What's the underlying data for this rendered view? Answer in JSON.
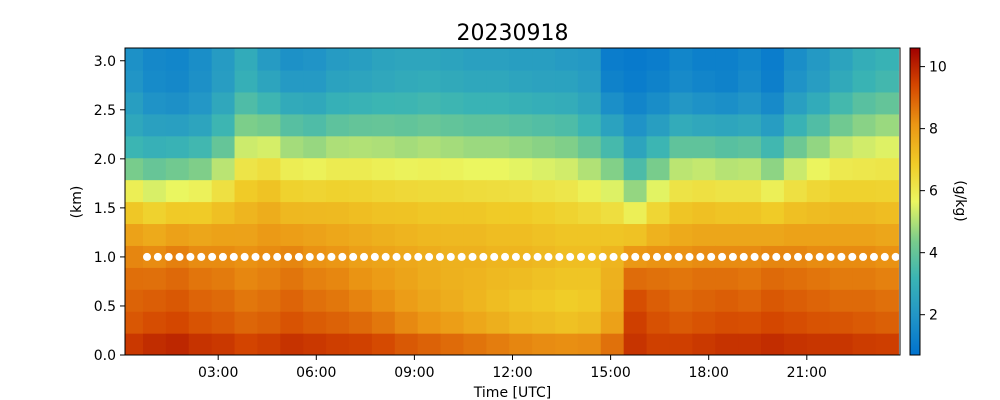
{
  "chart_data": {
    "type": "heatmap",
    "title": "20230918",
    "xlabel": "Time [UTC]",
    "ylabel": "(km)",
    "colorbar_label": "(g/kg)",
    "xlim_hours": [
      0.15,
      23.85
    ],
    "ylim_km": [
      0.0,
      3.13
    ],
    "x_ticks": [
      {
        "hour": 3,
        "label": "03:00"
      },
      {
        "hour": 6,
        "label": "06:00"
      },
      {
        "hour": 9,
        "label": "09:00"
      },
      {
        "hour": 12,
        "label": "12:00"
      },
      {
        "hour": 15,
        "label": "15:00"
      },
      {
        "hour": 18,
        "label": "18:00"
      },
      {
        "hour": 21,
        "label": "21:00"
      }
    ],
    "y_ticks": [
      {
        "km": 0.0,
        "label": "0.0"
      },
      {
        "km": 0.5,
        "label": "0.5"
      },
      {
        "km": 1.0,
        "label": "1.0"
      },
      {
        "km": 1.5,
        "label": "1.5"
      },
      {
        "km": 2.0,
        "label": "2.0"
      },
      {
        "km": 2.5,
        "label": "2.5"
      },
      {
        "km": 3.0,
        "label": "3.0"
      }
    ],
    "colorbar": {
      "vmin": 0.7,
      "vmax": 10.6,
      "colormap": "jet-like",
      "ticks": [
        {
          "value": 2,
          "label": "2"
        },
        {
          "value": 4,
          "label": "4"
        },
        {
          "value": 6,
          "label": "6"
        },
        {
          "value": 8,
          "label": "8"
        },
        {
          "value": 10,
          "label": "10"
        }
      ]
    },
    "marker_line": {
      "height_km": 1.0,
      "style": "white-dots"
    },
    "time_hours": [
      0.35,
      1.05,
      1.75,
      2.45,
      3.15,
      3.85,
      4.55,
      5.25,
      5.95,
      6.65,
      7.35,
      8.05,
      8.75,
      9.45,
      10.15,
      10.85,
      11.55,
      12.25,
      12.95,
      13.65,
      14.35,
      15.05,
      15.75,
      16.45,
      17.15,
      17.85,
      18.55,
      19.25,
      19.95,
      20.65,
      21.35,
      22.05,
      22.75,
      23.45
    ],
    "profile_heights_km": [
      0.0,
      0.25,
      0.5,
      0.75,
      1.0,
      1.25,
      1.5,
      1.75,
      2.0,
      2.25,
      2.5,
      2.75,
      3.0,
      3.13
    ],
    "profiles_g_per_kg": [
      [
        10.0,
        9.2,
        9.0,
        8.8,
        8.4,
        7.8,
        6.8,
        5.5,
        3.6,
        2.8,
        2.4,
        2.0,
        1.8,
        1.8
      ],
      [
        10.2,
        9.4,
        9.1,
        8.8,
        8.3,
        7.6,
        6.5,
        5.0,
        3.4,
        2.6,
        2.0,
        1.6,
        1.5,
        1.5
      ],
      [
        10.3,
        9.5,
        9.2,
        8.9,
        8.5,
        7.8,
        6.7,
        5.2,
        3.6,
        2.6,
        1.9,
        1.5,
        1.4,
        1.4
      ],
      [
        10.1,
        9.3,
        9.0,
        8.7,
        8.3,
        7.7,
        6.7,
        5.4,
        3.8,
        2.8,
        2.1,
        1.8,
        1.7,
        1.7
      ],
      [
        10.0,
        9.2,
        8.9,
        8.6,
        8.3,
        7.8,
        7.0,
        6.0,
        4.5,
        3.5,
        2.8,
        2.3,
        2.2,
        2.2
      ],
      [
        9.8,
        9.0,
        8.7,
        8.4,
        8.2,
        7.8,
        7.3,
        6.7,
        5.8,
        4.8,
        3.8,
        3.0,
        2.8,
        2.8
      ],
      [
        9.9,
        9.1,
        8.8,
        8.5,
        8.3,
        8.0,
        7.5,
        6.9,
        6.0,
        4.8,
        3.5,
        2.6,
        2.2,
        2.2
      ],
      [
        10.1,
        9.3,
        9.0,
        8.7,
        8.4,
        7.9,
        7.2,
        6.5,
        5.5,
        4.2,
        3.0,
        2.2,
        1.8,
        1.8
      ],
      [
        10.0,
        9.2,
        8.8,
        8.5,
        8.2,
        7.8,
        7.2,
        6.4,
        5.4,
        4.0,
        2.9,
        2.2,
        1.9,
        1.9
      ],
      [
        9.9,
        9.1,
        8.7,
        8.4,
        8.1,
        7.7,
        7.2,
        6.5,
        5.6,
        4.3,
        3.2,
        2.5,
        2.2,
        2.2
      ],
      [
        9.9,
        9.0,
        8.5,
        8.2,
        7.9,
        7.6,
        7.1,
        6.5,
        5.6,
        4.4,
        3.3,
        2.6,
        2.3,
        2.3
      ],
      [
        9.8,
        8.8,
        8.3,
        8.0,
        7.8,
        7.5,
        7.0,
        6.4,
        5.5,
        4.4,
        3.4,
        2.7,
        2.5,
        2.5
      ],
      [
        9.6,
        8.5,
        8.0,
        7.8,
        7.7,
        7.4,
        7.0,
        6.3,
        5.4,
        4.3,
        3.4,
        2.8,
        2.6,
        2.6
      ],
      [
        9.5,
        8.3,
        7.8,
        7.6,
        7.6,
        7.3,
        6.9,
        6.3,
        5.5,
        4.4,
        3.5,
        2.9,
        2.6,
        2.6
      ],
      [
        9.4,
        8.1,
        7.6,
        7.5,
        7.5,
        7.3,
        6.9,
        6.3,
        5.4,
        4.3,
        3.4,
        2.8,
        2.5,
        2.5
      ],
      [
        9.3,
        7.9,
        7.4,
        7.4,
        7.5,
        7.3,
        6.9,
        6.2,
        5.3,
        4.2,
        3.3,
        2.7,
        2.4,
        2.4
      ],
      [
        9.2,
        7.7,
        7.2,
        7.3,
        7.4,
        7.2,
        6.8,
        6.2,
        5.3,
        4.2,
        3.3,
        2.7,
        2.4,
        2.4
      ],
      [
        9.1,
        7.5,
        7.0,
        7.2,
        7.4,
        7.2,
        6.8,
        6.1,
        5.2,
        4.1,
        3.2,
        2.6,
        2.3,
        2.3
      ],
      [
        9.0,
        7.4,
        6.9,
        7.1,
        7.3,
        7.1,
        6.7,
        6.0,
        5.1,
        4.0,
        3.1,
        2.5,
        2.3,
        2.3
      ],
      [
        9.0,
        7.3,
        6.8,
        7.0,
        7.2,
        7.0,
        6.6,
        5.9,
        5.0,
        3.9,
        3.0,
        2.5,
        2.2,
        2.2
      ],
      [
        9.0,
        7.4,
        6.9,
        7.0,
        7.2,
        7.0,
        6.4,
        5.6,
        4.6,
        3.5,
        2.7,
        2.3,
        2.1,
        2.1
      ],
      [
        9.3,
        8.0,
        7.6,
        7.5,
        7.4,
        7.0,
        6.2,
        5.2,
        4.0,
        2.8,
        1.9,
        1.3,
        1.1,
        1.1
      ],
      [
        9.8,
        9.6,
        9.4,
        8.9,
        8.1,
        7.0,
        5.6,
        4.3,
        3.0,
        2.1,
        1.5,
        1.1,
        1.0,
        1.0
      ],
      [
        9.7,
        9.3,
        9.1,
        8.8,
        8.2,
        7.4,
        6.4,
        5.2,
        3.8,
        2.6,
        1.8,
        1.3,
        1.1,
        1.1
      ],
      [
        9.8,
        9.2,
        8.9,
        8.7,
        8.2,
        7.6,
        6.9,
        5.9,
        4.6,
        3.2,
        2.2,
        1.6,
        1.4,
        1.4
      ],
      [
        9.9,
        9.3,
        9.0,
        8.8,
        8.3,
        7.7,
        7.0,
        6.0,
        4.7,
        3.1,
        2.0,
        1.4,
        1.2,
        1.2
      ],
      [
        10.0,
        9.4,
        9.1,
        8.8,
        8.3,
        7.7,
        6.9,
        5.9,
        4.5,
        3.0,
        1.9,
        1.3,
        1.2,
        1.2
      ],
      [
        10.0,
        9.4,
        9.0,
        8.7,
        8.3,
        7.7,
        6.9,
        5.9,
        4.6,
        3.1,
        2.1,
        1.6,
        1.4,
        1.4
      ],
      [
        10.1,
        9.5,
        9.2,
        8.9,
        8.4,
        7.7,
        6.7,
        5.5,
        4.0,
        2.6,
        1.7,
        1.2,
        1.1,
        1.1
      ],
      [
        10.0,
        9.4,
        9.1,
        8.8,
        8.4,
        7.8,
        7.0,
        6.0,
        4.8,
        3.5,
        2.5,
        1.9,
        1.7,
        1.7
      ],
      [
        10.0,
        9.3,
        9.0,
        8.7,
        8.3,
        7.8,
        7.1,
        6.3,
        5.3,
        4.0,
        3.0,
        2.3,
        2.1,
        2.1
      ],
      [
        10.0,
        9.3,
        8.9,
        8.6,
        8.3,
        7.8,
        7.2,
        6.5,
        5.7,
        4.6,
        3.6,
        2.8,
        2.5,
        2.5
      ],
      [
        9.9,
        9.2,
        8.9,
        8.6,
        8.3,
        7.8,
        7.2,
        6.5,
        5.8,
        4.9,
        4.0,
        3.2,
        2.9,
        2.9
      ],
      [
        9.9,
        9.1,
        8.8,
        8.5,
        8.2,
        7.7,
        7.1,
        6.5,
        5.9,
        5.1,
        4.2,
        3.4,
        3.1,
        3.1
      ]
    ]
  }
}
